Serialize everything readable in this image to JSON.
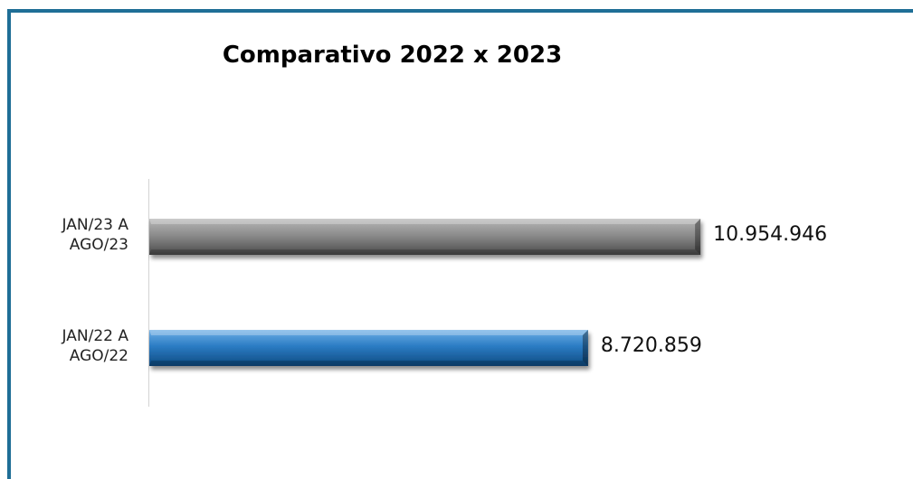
{
  "chart_data": {
    "type": "bar",
    "orientation": "horizontal",
    "title": "Comparativo 2022 x 2023",
    "categories": [
      "JAN/23 A AGO/23",
      "JAN/22 A AGO/22"
    ],
    "category_lines": [
      [
        "JAN/23 A",
        "AGO/23"
      ],
      [
        "JAN/22 A",
        "AGO/22"
      ]
    ],
    "values": [
      10954946,
      8720859
    ],
    "value_labels": [
      "10.954.946",
      "8.720.859"
    ],
    "bar_colors": [
      "#7a7a7a",
      "#1f6fb5"
    ],
    "xlim": [
      0,
      11600000
    ],
    "grid": false,
    "legend": "none"
  },
  "frame_color": "#1f6e96"
}
